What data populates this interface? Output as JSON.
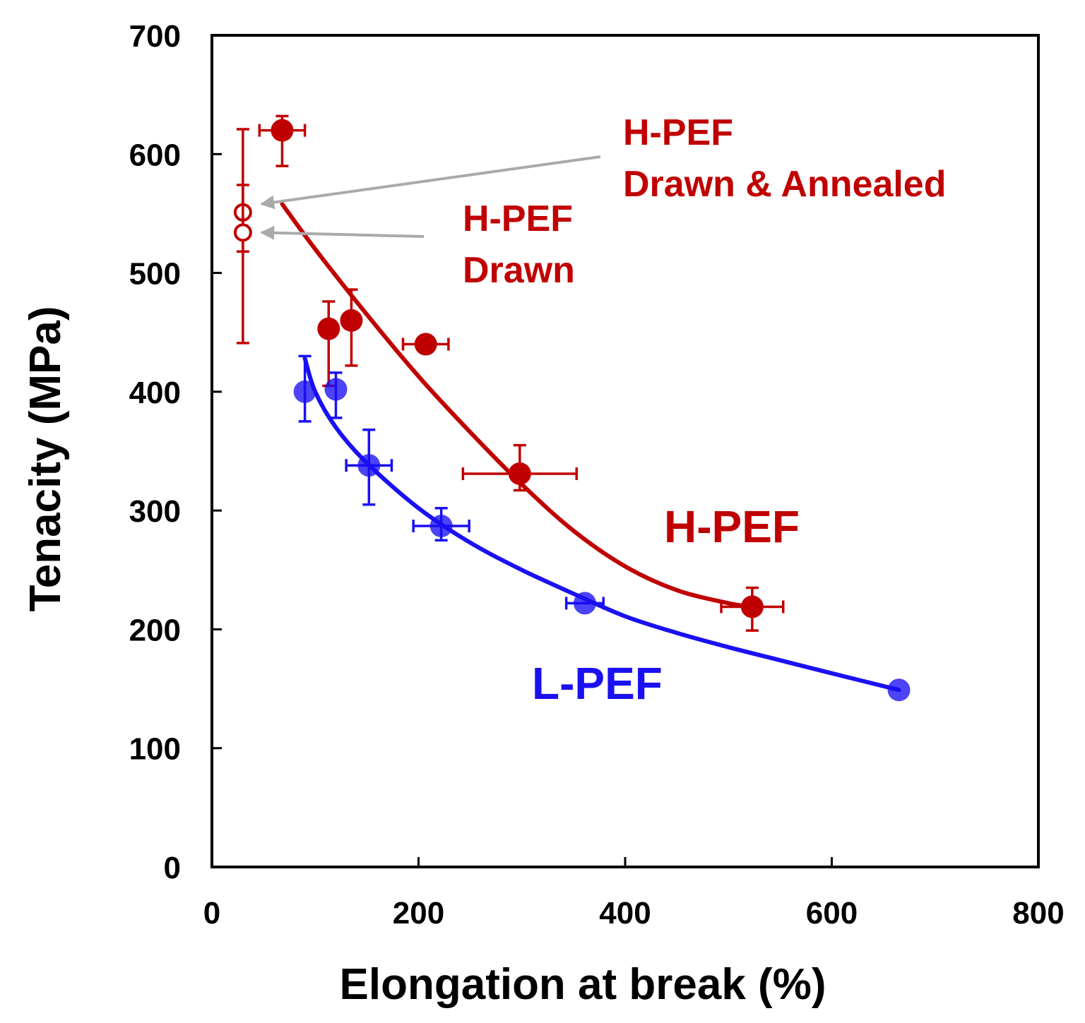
{
  "chart_data": {
    "type": "scatter",
    "title": "",
    "xlabel": "Elongation at break (%)",
    "ylabel": "Tenacity (MPa)",
    "xlim": [
      0,
      800
    ],
    "ylim": [
      0,
      700
    ],
    "x_ticks": [
      0,
      200,
      400,
      600,
      800
    ],
    "y_ticks": [
      0,
      100,
      200,
      300,
      400,
      500,
      600,
      700
    ],
    "grid": false,
    "series": [
      {
        "name": "H-PEF",
        "color": "#c00000",
        "marker": "filled-circle",
        "points": [
          {
            "x": 68,
            "y": 620,
            "xerr": 22,
            "yerr_up": 12,
            "yerr_down": 30
          },
          {
            "x": 113,
            "y": 453,
            "xerr": 0,
            "yerr_up": 23,
            "yerr_down": 48
          },
          {
            "x": 135,
            "y": 460,
            "xerr": 0,
            "yerr_up": 26,
            "yerr_down": 38
          },
          {
            "x": 207,
            "y": 440,
            "xerr": 22,
            "yerr_up": 0,
            "yerr_down": 0
          },
          {
            "x": 298,
            "y": 331,
            "xerr": 55,
            "yerr_up": 24,
            "yerr_down": 14
          },
          {
            "x": 523,
            "y": 219,
            "xerr": 30,
            "yerr_up": 16,
            "yerr_down": 20
          }
        ],
        "fit_curve": [
          [
            68,
            558
          ],
          [
            100,
            520
          ],
          [
            150,
            465
          ],
          [
            200,
            413
          ],
          [
            250,
            366
          ],
          [
            300,
            322
          ],
          [
            350,
            283
          ],
          [
            400,
            253
          ],
          [
            450,
            233
          ],
          [
            500,
            222
          ],
          [
            523,
            219
          ]
        ]
      },
      {
        "name": "L-PEF",
        "color": "#1a10f2",
        "marker": "filled-circle",
        "points": [
          {
            "x": 90,
            "y": 400,
            "xerr": 0,
            "yerr_up": 30,
            "yerr_down": 25
          },
          {
            "x": 120,
            "y": 402,
            "xerr": 0,
            "yerr_up": 14,
            "yerr_down": 24
          },
          {
            "x": 152,
            "y": 338,
            "xerr": 22,
            "yerr_up": 30,
            "yerr_down": 33
          },
          {
            "x": 222,
            "y": 287,
            "xerr": 27,
            "yerr_up": 15,
            "yerr_down": 12
          },
          {
            "x": 361,
            "y": 222,
            "xerr": 18,
            "yerr_up": 0,
            "yerr_down": 0
          },
          {
            "x": 665,
            "y": 149,
            "xerr": 0,
            "yerr_up": 0,
            "yerr_down": 0
          }
        ],
        "fit_curve": [
          [
            90,
            428
          ],
          [
            100,
            400
          ],
          [
            120,
            370
          ],
          [
            150,
            340
          ],
          [
            200,
            302
          ],
          [
            250,
            273
          ],
          [
            300,
            250
          ],
          [
            350,
            230
          ],
          [
            400,
            211
          ],
          [
            450,
            197
          ],
          [
            500,
            185
          ],
          [
            550,
            174
          ],
          [
            600,
            163
          ],
          [
            665,
            149
          ]
        ]
      },
      {
        "name": "H-PEF Drawn & Annealed",
        "color": "#c00000",
        "marker": "open-circle",
        "points": [
          {
            "x": 30,
            "y": 551,
            "xerr": 0,
            "yerr_up": 70,
            "yerr_down": 110
          }
        ]
      },
      {
        "name": "H-PEF Drawn",
        "color": "#c00000",
        "marker": "open-circle",
        "points": [
          {
            "x": 30,
            "y": 534,
            "xerr": 0,
            "yerr_up": 40,
            "yerr_down": 16
          }
        ]
      }
    ],
    "annotations": [
      {
        "id": "drawn-annealed",
        "lines": [
          "H-PEF",
          "Drawn & Annealed"
        ],
        "color": "#c00000",
        "arrow_to": [
          48,
          558
        ]
      },
      {
        "id": "drawn",
        "lines": [
          "H-PEF",
          "Drawn"
        ],
        "color": "#c00000",
        "arrow_to": [
          48,
          534
        ]
      },
      {
        "id": "hpef-label",
        "lines": [
          "H-PEF"
        ],
        "color": "#c00000"
      },
      {
        "id": "lpef-label",
        "lines": [
          "L-PEF"
        ],
        "color": "#1a10f2"
      }
    ]
  }
}
